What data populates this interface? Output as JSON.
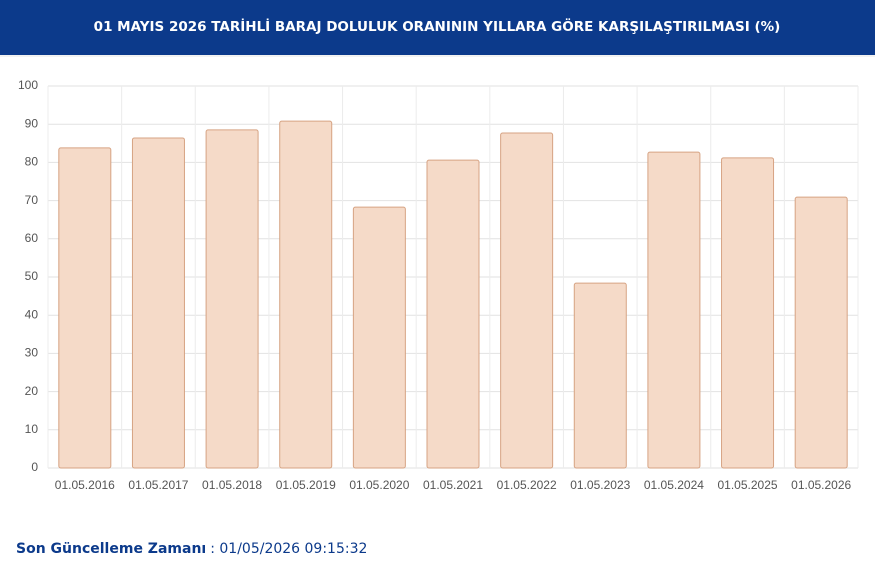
{
  "chart_data": {
    "type": "bar",
    "title": "01 MAYIS 2026 TARİHLİ BARAJ DOLULUK ORANININ YILLARA GÖRE KARŞILAŞTIRILMASI (%)",
    "categories": [
      "01.05.2016",
      "01.05.2017",
      "01.05.2018",
      "01.05.2019",
      "01.05.2020",
      "01.05.2021",
      "01.05.2022",
      "01.05.2023",
      "01.05.2024",
      "01.05.2025",
      "01.05.2026"
    ],
    "values": [
      83.8,
      86.4,
      88.5,
      90.8,
      68.3,
      80.6,
      87.7,
      48.4,
      82.7,
      81.2,
      70.9
    ],
    "color": "#f5dac8",
    "ylim": [
      0,
      100
    ],
    "yticks": [
      0,
      10,
      20,
      30,
      40,
      50,
      60,
      70,
      80,
      90,
      100
    ],
    "grid": true
  },
  "footer": {
    "label": "Son Güncelleme Zamanı",
    "value": ": 01/05/2026 09:15:32"
  }
}
